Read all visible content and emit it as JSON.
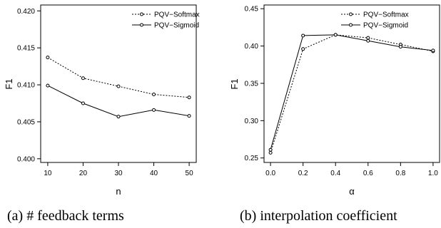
{
  "captions": [
    "(a) # feedback terms",
    "(b) interpolation coefficient"
  ],
  "chart_data": [
    {
      "type": "line",
      "xlabel": "n",
      "ylabel": "F1",
      "x": [
        10,
        20,
        30,
        40,
        50
      ],
      "xticks": [
        "10",
        "20",
        "30",
        "40",
        "50"
      ],
      "yticks": [
        "0.400",
        "0.405",
        "0.410",
        "0.415",
        "0.420"
      ],
      "xlim": [
        8,
        52
      ],
      "ylim": [
        0.3995,
        0.4208
      ],
      "series": [
        {
          "name": "PQV−Softmax",
          "style": "dotted",
          "values": [
            0.4137,
            0.4109,
            0.4098,
            0.4087,
            0.4083
          ]
        },
        {
          "name": "PQV−Sigmoid",
          "style": "solid",
          "values": [
            0.4099,
            0.4075,
            0.4057,
            0.4066,
            0.4058
          ]
        }
      ],
      "legend_position": "top-right"
    },
    {
      "type": "line",
      "xlabel": "α",
      "ylabel": "F1",
      "x": [
        0.0,
        0.2,
        0.4,
        0.6,
        0.8,
        1.0
      ],
      "xticks": [
        "0.0",
        "0.2",
        "0.4",
        "0.6",
        "0.8",
        "1.0"
      ],
      "yticks": [
        "0.25",
        "0.30",
        "0.35",
        "0.40",
        "0.45"
      ],
      "xlim": [
        -0.04,
        1.04
      ],
      "ylim": [
        0.244,
        0.455
      ],
      "series": [
        {
          "name": "PQV−Softmax",
          "style": "dotted",
          "values": [
            0.257,
            0.396,
            0.415,
            0.411,
            0.402,
            0.393
          ]
        },
        {
          "name": "PQV−Sigmoid",
          "style": "solid",
          "values": [
            0.261,
            0.414,
            0.415,
            0.407,
            0.399,
            0.394
          ]
        }
      ],
      "legend_position": "top-right"
    }
  ]
}
